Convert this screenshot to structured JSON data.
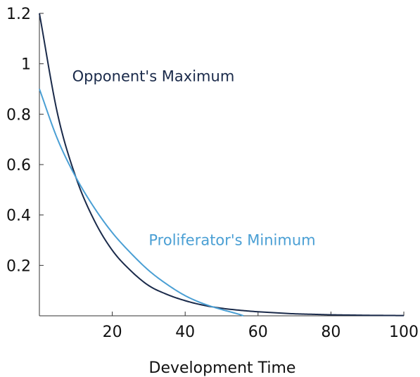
{
  "chart_data": {
    "type": "line",
    "title": "",
    "xlabel": "Development Time",
    "ylabel": "",
    "xlim": [
      0,
      100
    ],
    "ylim": [
      0,
      1.2
    ],
    "x_ticks": [
      20,
      40,
      60,
      80,
      100
    ],
    "x_tick_labels": [
      "20",
      "40",
      "60",
      "80",
      "100"
    ],
    "y_ticks": [
      0.2,
      0.4,
      0.6,
      0.8,
      1.0,
      1.2
    ],
    "y_tick_labels": [
      "0.2",
      "0.4",
      "0.6",
      "0.8",
      "1",
      "1.2"
    ],
    "grid": false,
    "series": [
      {
        "name": "Opponent's Maximum",
        "color": "#1a2a4a",
        "x": [
          0,
          5,
          10,
          15,
          20,
          25,
          30,
          35,
          40,
          45,
          50,
          55,
          60,
          65,
          70,
          75,
          80,
          85,
          90,
          95,
          100
        ],
        "y": [
          1.2,
          0.8,
          0.55,
          0.38,
          0.26,
          0.18,
          0.12,
          0.085,
          0.06,
          0.042,
          0.03,
          0.022,
          0.016,
          0.012,
          0.008,
          0.006,
          0.004,
          0.003,
          0.002,
          0.0015,
          0.001
        ]
      },
      {
        "name": "Proliferator's Minimum",
        "color": "#4a9fd4",
        "x": [
          0,
          5,
          10,
          15,
          20,
          25,
          30,
          35,
          40,
          45,
          50,
          55,
          56
        ],
        "y": [
          0.9,
          0.7,
          0.55,
          0.43,
          0.33,
          0.25,
          0.18,
          0.125,
          0.08,
          0.048,
          0.025,
          0.005,
          0.0
        ]
      }
    ],
    "annotations": [
      {
        "text": "Opponent's Maximum",
        "x": 9,
        "y": 0.95,
        "color": "#1a2a4a"
      },
      {
        "text": "Proliferator's Minimum",
        "x": 30,
        "y": 0.3,
        "color": "#4a9fd4"
      }
    ]
  }
}
